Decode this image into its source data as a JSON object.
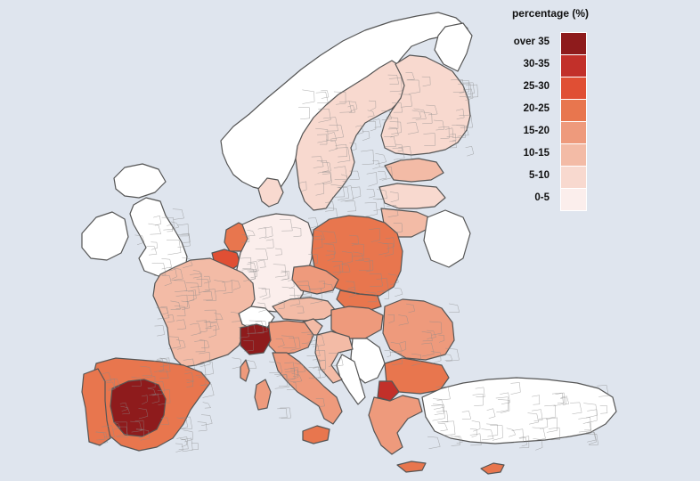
{
  "map": {
    "palette": {
      "background": "#dfe5ee",
      "no_data": "#ffffff",
      "border": "#555555",
      "class_colors": [
        "#fbeeec",
        "#f8d9cf",
        "#f3bba6",
        "#ee9a7c",
        "#e8764e",
        "#e04f34",
        "#c2302a",
        "#8e1b1c"
      ]
    },
    "legend": {
      "title": "percentage (%)",
      "classes": [
        {
          "label": "over 35",
          "color": "#8e1b1c"
        },
        {
          "label": "30-35",
          "color": "#c2302a"
        },
        {
          "label": "25-30",
          "color": "#e04f34"
        },
        {
          "label": "20-25",
          "color": "#e8764e"
        },
        {
          "label": "15-20",
          "color": "#ee9a7c"
        },
        {
          "label": "10-15",
          "color": "#f3bba6"
        },
        {
          "label": "5-10",
          "color": "#f8d9cf"
        },
        {
          "label": "0-5",
          "color": "#fbeeec"
        }
      ]
    },
    "regions": [
      {
        "name": "Norway",
        "class": "no-data"
      },
      {
        "name": "Sweden",
        "class": "5-10"
      },
      {
        "name": "Finland",
        "class": "5-10"
      },
      {
        "name": "Estonia",
        "class": "10-15"
      },
      {
        "name": "Latvia",
        "class": "5-10"
      },
      {
        "name": "Lithuania",
        "class": "10-15"
      },
      {
        "name": "Iceland",
        "class": "no-data"
      },
      {
        "name": "Ireland",
        "class": "no-data"
      },
      {
        "name": "United Kingdom",
        "class": "no-data"
      },
      {
        "name": "Denmark",
        "class": "5-10"
      },
      {
        "name": "Netherlands",
        "class": "20-25"
      },
      {
        "name": "Belgium",
        "class": "25-30"
      },
      {
        "name": "Germany",
        "class": "0-5"
      },
      {
        "name": "Poland",
        "class": "20-25"
      },
      {
        "name": "France",
        "class": "10-15"
      },
      {
        "name": "Switzerland",
        "class": "no-data"
      },
      {
        "name": "Austria",
        "class": "10-15"
      },
      {
        "name": "Czechia",
        "class": "15-20"
      },
      {
        "name": "Slovakia",
        "class": "20-25"
      },
      {
        "name": "Hungary",
        "class": "15-20"
      },
      {
        "name": "Romania",
        "class": "15-20"
      },
      {
        "name": "Bulgaria",
        "class": "20-25"
      },
      {
        "name": "Serbia",
        "class": "no-data"
      },
      {
        "name": "Western Balkans",
        "class": "no-data"
      },
      {
        "name": "Croatia",
        "class": "10-15"
      },
      {
        "name": "Slovenia",
        "class": "10-15"
      },
      {
        "name": "Italy North",
        "class": "15-20"
      },
      {
        "name": "Italy Piedmont",
        "class": "over 35"
      },
      {
        "name": "Italy South",
        "class": "15-20"
      },
      {
        "name": "Sicily",
        "class": "20-25"
      },
      {
        "name": "Sardinia",
        "class": "15-20"
      },
      {
        "name": "Spain",
        "class": "20-25"
      },
      {
        "name": "Spain Central",
        "class": "over 35"
      },
      {
        "name": "Portugal",
        "class": "20-25"
      },
      {
        "name": "Greece",
        "class": "15-20"
      },
      {
        "name": "North Macedonia",
        "class": "30-35"
      },
      {
        "name": "Turkey",
        "class": "no-data"
      },
      {
        "name": "Cyprus",
        "class": "20-25"
      },
      {
        "name": "Corsica",
        "class": "15-20"
      },
      {
        "name": "Crete",
        "class": "20-25"
      },
      {
        "name": "Belarus",
        "class": "no-data"
      },
      {
        "name": "Russia North",
        "class": "no-data"
      }
    ]
  }
}
